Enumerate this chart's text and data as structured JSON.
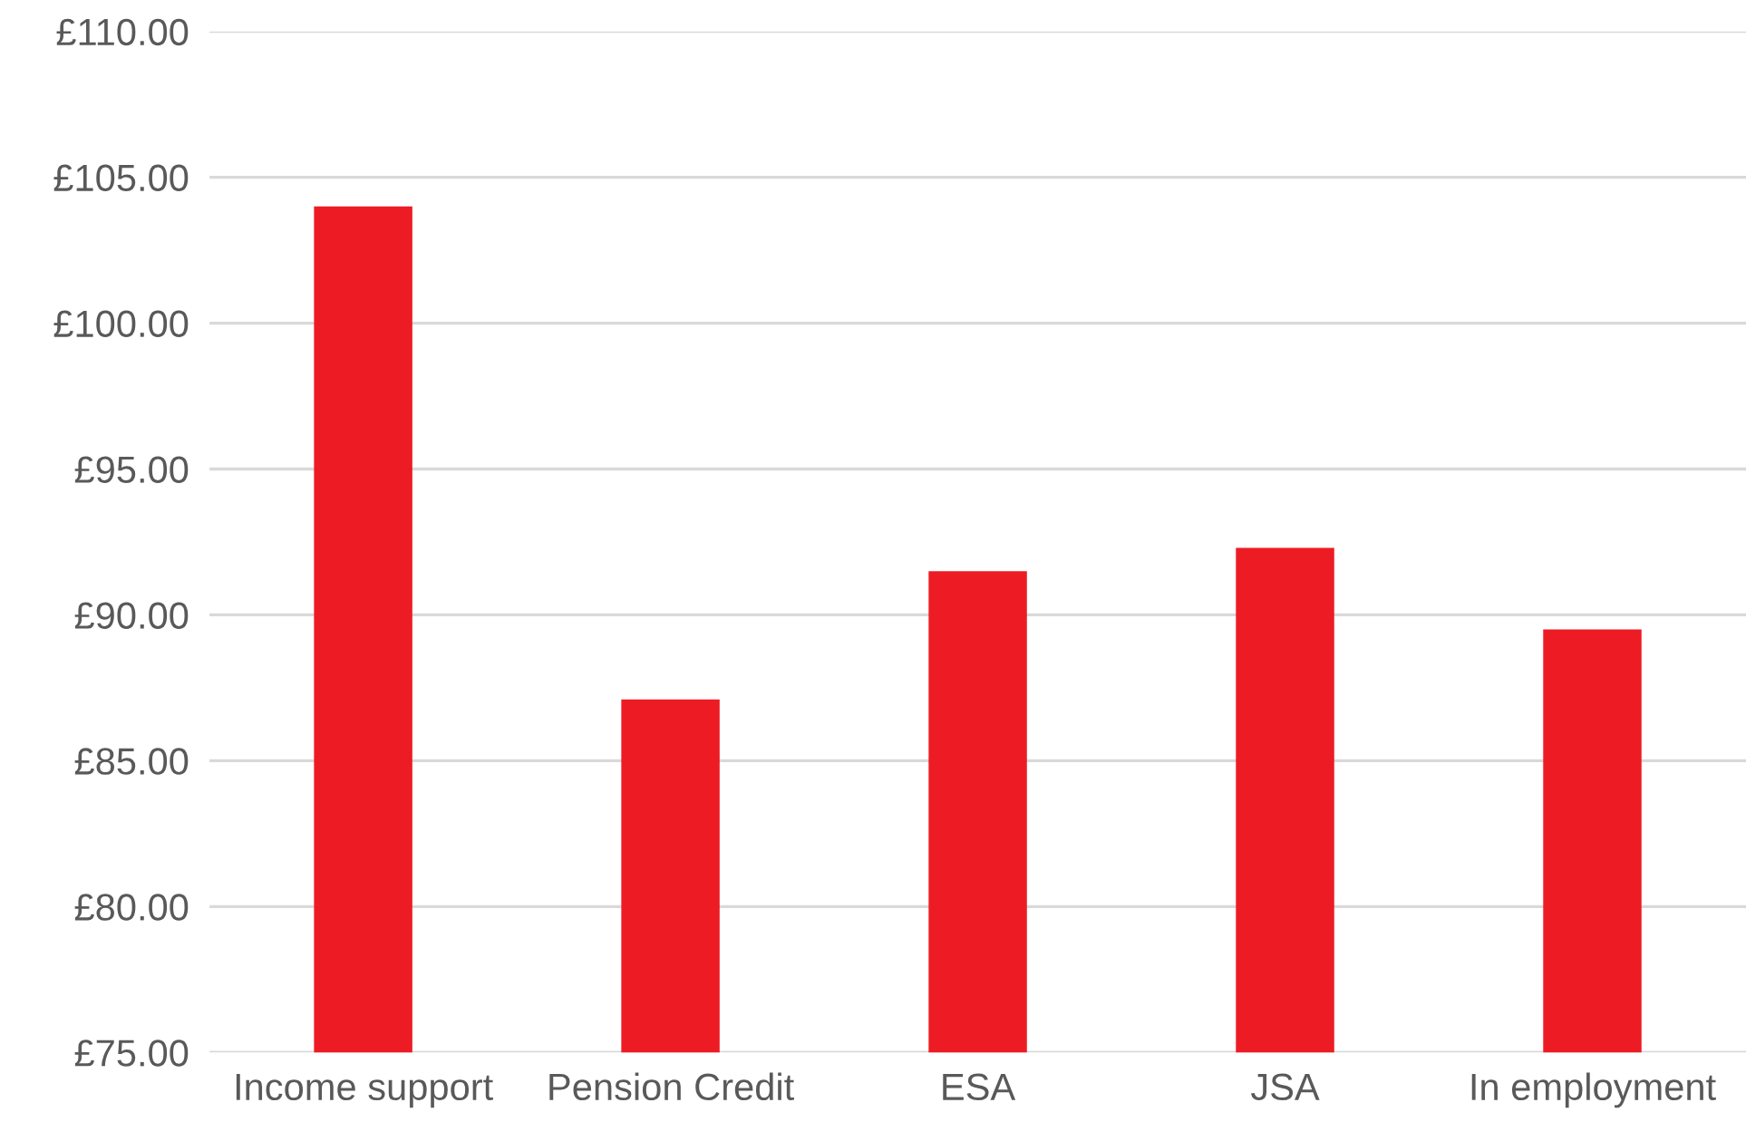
{
  "chart_data": {
    "type": "bar",
    "categories": [
      "Income support",
      "Pension Credit",
      "ESA",
      "JSA",
      "In employment"
    ],
    "values": [
      104.0,
      87.1,
      91.5,
      92.3,
      89.5
    ],
    "color": "#ed1c24",
    "ylim": [
      75,
      110
    ],
    "yticks": [
      {
        "value": 75,
        "label": "£75.00"
      },
      {
        "value": 80,
        "label": "£80.00"
      },
      {
        "value": 85,
        "label": "£85.00"
      },
      {
        "value": 90,
        "label": "£90.00"
      },
      {
        "value": 95,
        "label": "£95.00"
      },
      {
        "value": 100,
        "label": "£100.00"
      },
      {
        "value": 105,
        "label": "£105.00"
      },
      {
        "value": 110,
        "label": "£110.00"
      }
    ],
    "grid": "y"
  }
}
